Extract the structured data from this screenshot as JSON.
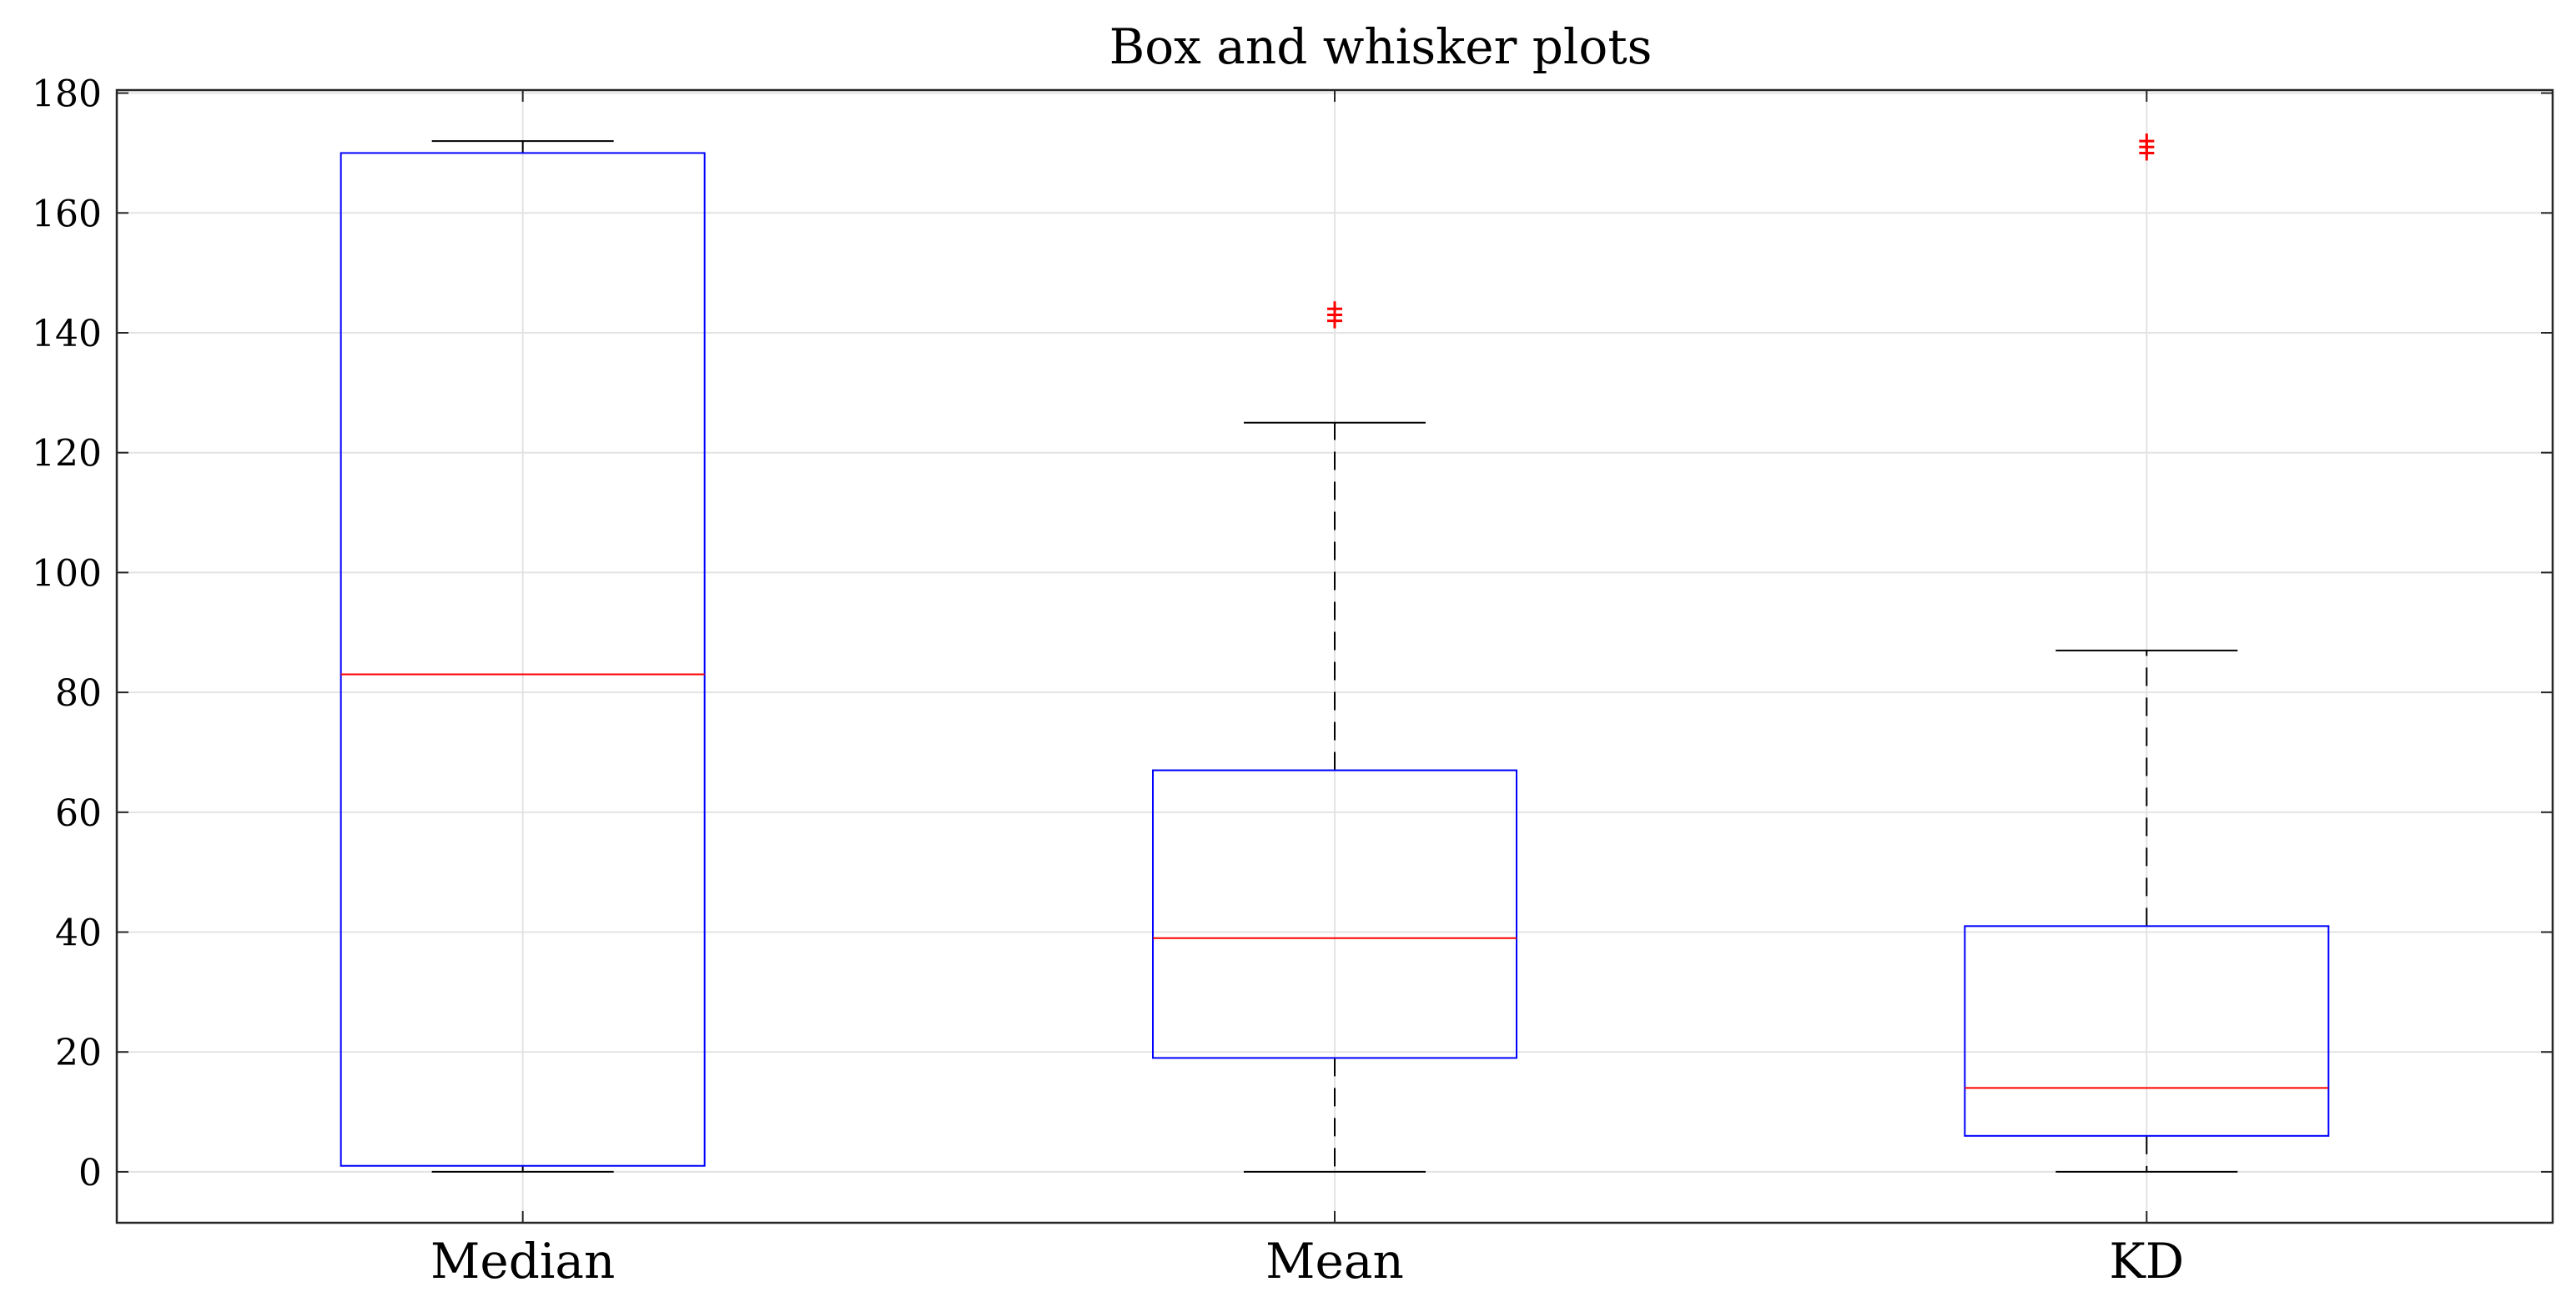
{
  "chart_data": {
    "type": "box",
    "title": "Box and whisker plots",
    "xlabel": "",
    "ylabel": "",
    "categories": [
      "Median",
      "Mean",
      "KD"
    ],
    "ylim": [
      -8.5,
      180.5
    ],
    "yticks": [
      0,
      20,
      40,
      60,
      80,
      100,
      120,
      140,
      160,
      180
    ],
    "grid": true,
    "boxes": [
      {
        "category": "Median",
        "whisker_low": 0,
        "q1": 1,
        "median": 83,
        "q3": 170,
        "whisker_high": 172,
        "outliers": []
      },
      {
        "category": "Mean",
        "whisker_low": 0,
        "q1": 19,
        "median": 39,
        "q3": 67,
        "whisker_high": 125,
        "outliers": [
          142,
          143,
          144
        ]
      },
      {
        "category": "KD",
        "whisker_low": 0,
        "q1": 6,
        "median": 14,
        "q3": 41,
        "whisker_high": 87,
        "outliers": [
          170,
          171,
          172
        ]
      }
    ],
    "colors": {
      "box": "#0000ff",
      "median": "#ff0000",
      "whisker": "#000000",
      "outlier": "#ff0000",
      "grid": "#e3e3e3",
      "axis": "#262626"
    }
  }
}
